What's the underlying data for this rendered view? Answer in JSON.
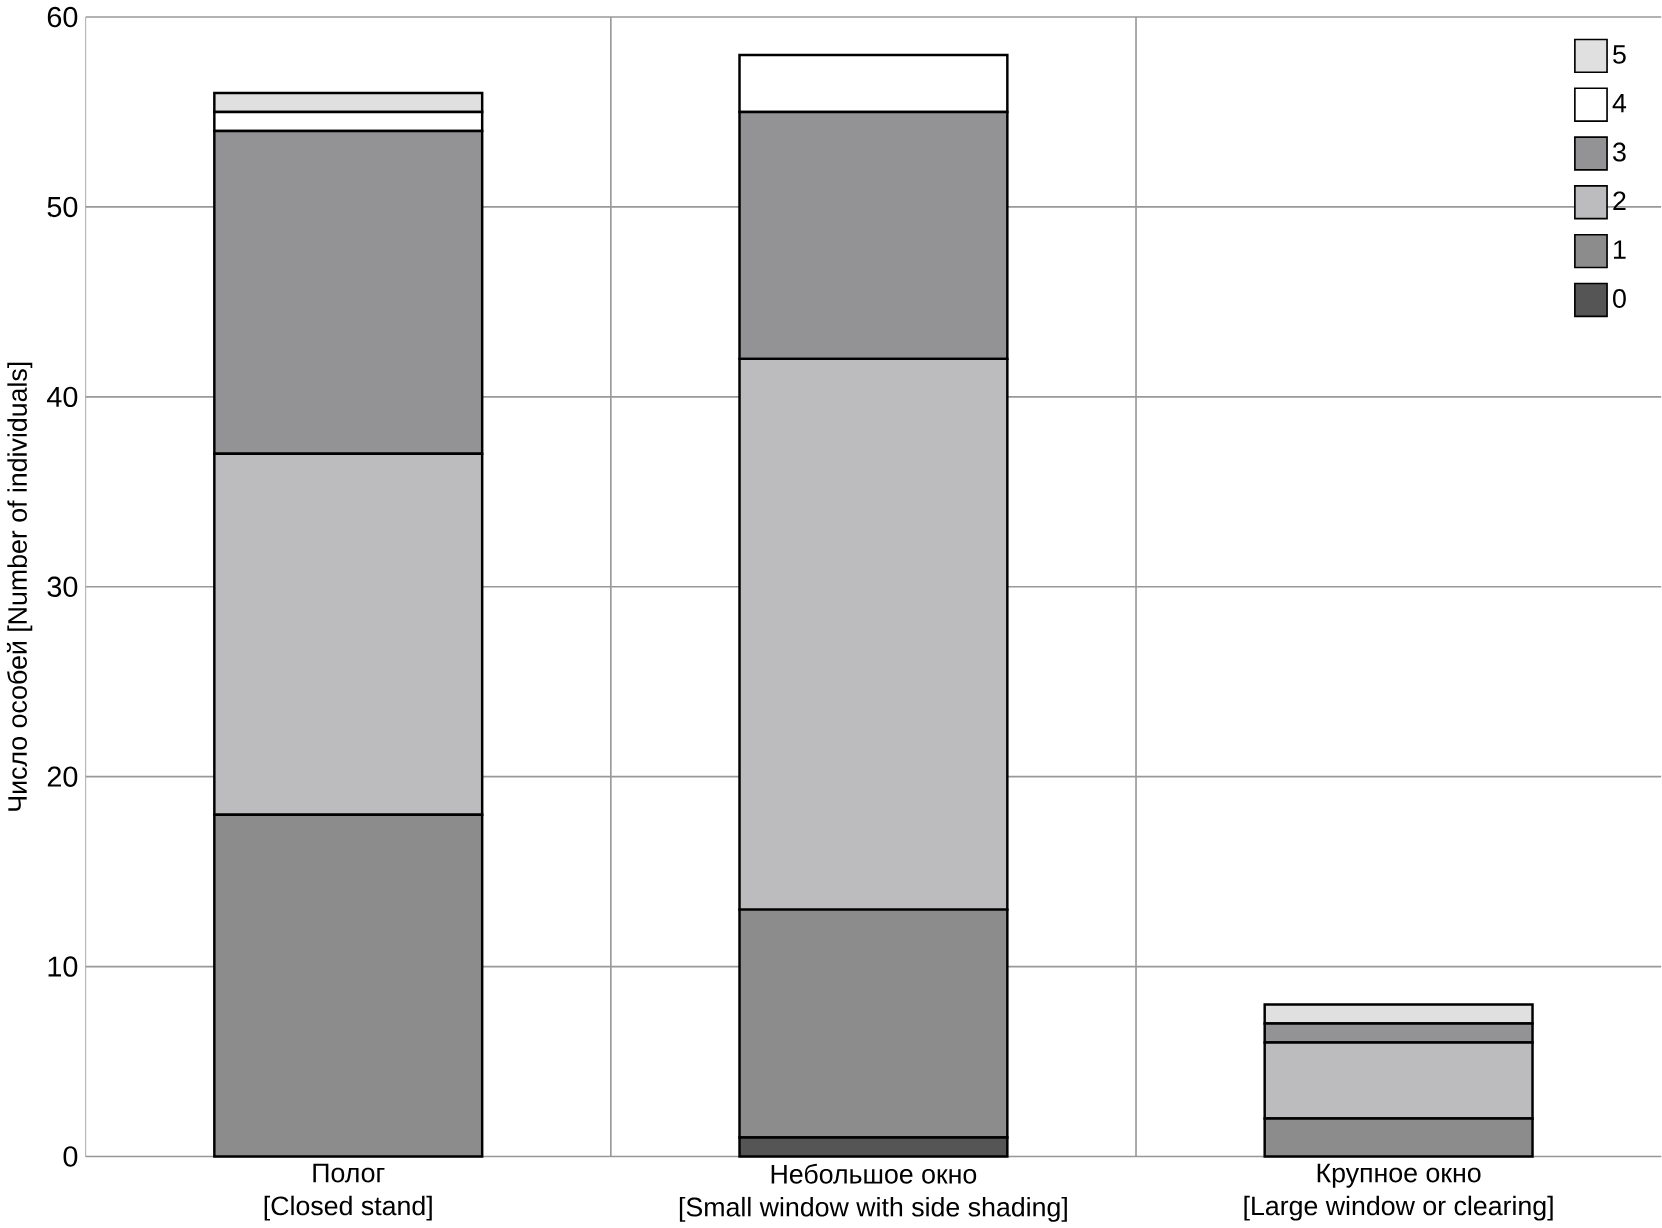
{
  "chart_data": {
    "type": "bar",
    "stacked": true,
    "ylabel": "Число особей [Number of individuals]",
    "categories": [
      "Полог\n[Closed stand]",
      "Небольшое окно\n[Small window with side shading]",
      "Крупное окно\n[Large window or clearing]"
    ],
    "series": [
      {
        "name": "0",
        "color": "#555555",
        "values": [
          0,
          1,
          0
        ]
      },
      {
        "name": "1",
        "color": "#8c8c8c",
        "values": [
          18,
          12,
          2
        ]
      },
      {
        "name": "2",
        "color": "#bcbcbe",
        "values": [
          19,
          29,
          4
        ]
      },
      {
        "name": "3",
        "color": "#939396",
        "values": [
          17,
          13,
          1
        ]
      },
      {
        "name": "4",
        "color": "#ffffff",
        "values": [
          1,
          3,
          0
        ]
      },
      {
        "name": "5",
        "color": "#e0e0e0",
        "values": [
          1,
          0,
          1
        ]
      }
    ],
    "ylim": [
      0,
      60
    ],
    "yticks": [
      0,
      10,
      20,
      30,
      40,
      50,
      60
    ],
    "grid": true,
    "legend": "top right"
  }
}
